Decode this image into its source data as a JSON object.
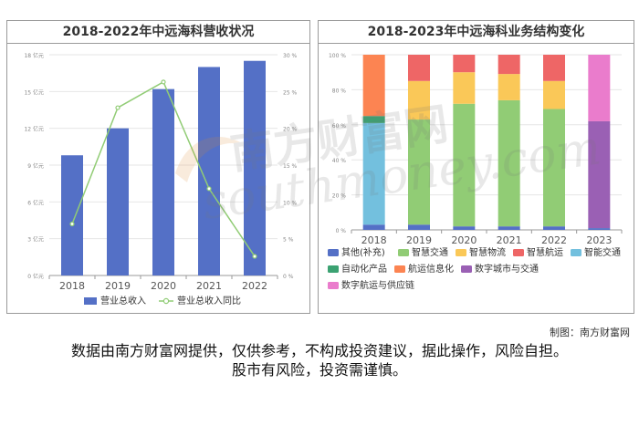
{
  "chart_data": [
    {
      "type": "bar+line",
      "title": "2018-2022年中远海科营收状况",
      "categories": [
        "2018",
        "2019",
        "2020",
        "2021",
        "2022"
      ],
      "series": [
        {
          "name": "营业总收入",
          "type": "bar",
          "axis": "left",
          "unit": "亿元",
          "values": [
            9.8,
            12.0,
            15.2,
            17.0,
            17.5
          ],
          "color": "#5470c6"
        },
        {
          "name": "营业总收入同比",
          "type": "line",
          "axis": "right",
          "unit": "%",
          "values": [
            7.0,
            22.8,
            26.3,
            11.8,
            2.6
          ],
          "color": "#91cc75"
        }
      ],
      "left_axis": {
        "min": 0,
        "max": 18,
        "ticks": [
          "0 亿元",
          "3 亿元",
          "6 亿元",
          "9 亿元",
          "12 亿元",
          "15 亿元",
          "18 亿元"
        ]
      },
      "right_axis": {
        "min": 0,
        "max": 30,
        "ticks": [
          "0 %",
          "5 %",
          "10 %",
          "15 %",
          "20 %",
          "25 %",
          "30 %"
        ]
      },
      "legend_position": "bottom-center",
      "grid": "horizontal"
    },
    {
      "type": "stacked-bar",
      "title": "2018-2023年中远海科业务结构变化",
      "categories": [
        "2018",
        "2019",
        "2020",
        "2021",
        "2022",
        "2023"
      ],
      "y_axis": {
        "min": 0,
        "max": 100,
        "ticks": [
          "0 %",
          "20 %",
          "40 %",
          "60 %",
          "80 %",
          "100 %"
        ]
      },
      "series": [
        {
          "name": "其他(补充)",
          "color": "#5470c6",
          "values": [
            3,
            3,
            2,
            2,
            2,
            1
          ]
        },
        {
          "name": "智慧交通",
          "color": "#91cc75",
          "values": [
            0,
            60,
            70,
            72,
            67,
            0
          ]
        },
        {
          "name": "智慧物流",
          "color": "#fac858",
          "values": [
            0,
            22,
            18,
            15,
            16,
            0
          ]
        },
        {
          "name": "智慧航运",
          "color": "#ee6666",
          "values": [
            0,
            15,
            10,
            11,
            15,
            0
          ]
        },
        {
          "name": "智能交通",
          "color": "#73c0de",
          "values": [
            58,
            0,
            0,
            0,
            0,
            0
          ]
        },
        {
          "name": "自动化产品",
          "color": "#3ba272",
          "values": [
            4,
            0,
            0,
            0,
            0,
            0
          ]
        },
        {
          "name": "航运信息化",
          "color": "#fc8452",
          "values": [
            35,
            0,
            0,
            0,
            0,
            0
          ]
        },
        {
          "name": "数字城市与交通",
          "color": "#9a60b4",
          "values": [
            0,
            0,
            0,
            0,
            0,
            61
          ]
        },
        {
          "name": "数字航运与供应链",
          "color": "#ea7ccc",
          "values": [
            0,
            0,
            0,
            0,
            0,
            38
          ]
        }
      ],
      "legend_position": "bottom",
      "grid": "horizontal"
    }
  ],
  "credit": "制图：南方财富网",
  "disclaimer_lines": [
    "数据由南方财富网提供，仅供参考，不构成投资建议，据此操作，风险自担。",
    "股市有风险，投资需谨慎。"
  ],
  "watermark": {
    "cn": "南方财富网",
    "en": "southmoney.com"
  }
}
